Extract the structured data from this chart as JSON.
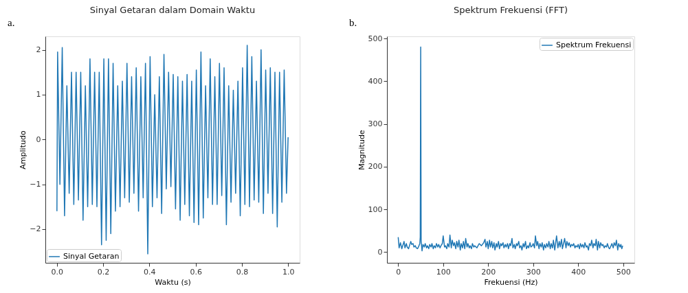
{
  "chart_data": [
    {
      "type": "line",
      "title": "Sinyal Getaran dalam Domain Waktu",
      "xlabel": "Waktu (s)",
      "ylabel": "Amplitudo",
      "annotations": [
        "a."
      ],
      "legend": "bottom left",
      "grid": false,
      "xlim": [
        -0.05,
        1.05
      ],
      "ylim": [
        -2.75,
        2.3
      ],
      "xticks": [
        {
          "value": 0,
          "label": "0.0"
        },
        0.2,
        0.4,
        0.6,
        0.8,
        {
          "value": 1,
          "label": "1.0"
        }
      ],
      "yticks": [
        {
          "value": -2,
          "label": "−2"
        },
        {
          "value": -1,
          "label": "−1"
        },
        0,
        1,
        2
      ],
      "series": [
        {
          "name": "Sinyal Getaran",
          "color": "#1f77b4",
          "x": [
            0,
            0.003,
            0.013,
            0.023,
            0.033,
            0.043,
            0.053,
            0.063,
            0.073,
            0.083,
            0.093,
            0.103,
            0.113,
            0.123,
            0.133,
            0.143,
            0.153,
            0.163,
            0.173,
            0.183,
            0.193,
            0.203,
            0.213,
            0.223,
            0.233,
            0.243,
            0.253,
            0.263,
            0.273,
            0.283,
            0.293,
            0.303,
            0.313,
            0.323,
            0.333,
            0.343,
            0.353,
            0.363,
            0.373,
            0.383,
            0.393,
            0.403,
            0.413,
            0.423,
            0.433,
            0.443,
            0.453,
            0.463,
            0.473,
            0.483,
            0.493,
            0.503,
            0.513,
            0.523,
            0.533,
            0.543,
            0.553,
            0.563,
            0.573,
            0.583,
            0.593,
            0.603,
            0.613,
            0.623,
            0.633,
            0.643,
            0.653,
            0.663,
            0.673,
            0.683,
            0.693,
            0.703,
            0.713,
            0.723,
            0.733,
            0.743,
            0.753,
            0.763,
            0.773,
            0.783,
            0.793,
            0.803,
            0.813,
            0.823,
            0.833,
            0.843,
            0.853,
            0.863,
            0.873,
            0.883,
            0.893,
            0.903,
            0.913,
            0.923,
            0.933,
            0.943,
            0.953,
            0.963,
            0.973,
            0.983,
            0.993,
            1.0
          ],
          "values": [
            -1.6,
            1.95,
            -1.0,
            2.05,
            -1.7,
            1.2,
            -1.2,
            1.5,
            -1.45,
            1.5,
            -1.35,
            1.5,
            -1.8,
            1.2,
            -1.5,
            1.8,
            -1.45,
            1.5,
            -1.5,
            1.5,
            -2.35,
            1.8,
            -2.25,
            1.8,
            -2.1,
            1.7,
            -1.6,
            1.2,
            -1.5,
            1.3,
            -1.3,
            1.7,
            -1.4,
            1.4,
            -1.2,
            1.6,
            -1.6,
            1.4,
            -1.3,
            1.7,
            -2.55,
            1.85,
            -1.5,
            1.0,
            -1.3,
            1.4,
            -1.65,
            1.9,
            -1.1,
            1.5,
            -1.05,
            1.45,
            -1.55,
            1.4,
            -1.8,
            1.3,
            -1.45,
            1.45,
            -1.7,
            1.3,
            -1.85,
            1.55,
            -1.9,
            1.95,
            -1.75,
            1.2,
            -1.3,
            1.8,
            -1.45,
            1.4,
            -1.45,
            1.7,
            -1.25,
            1.6,
            -1.9,
            1.2,
            -1.4,
            1.1,
            -1.2,
            1.3,
            -1.7,
            1.6,
            -1.45,
            2.1,
            -1.5,
            1.85,
            -1.35,
            1.3,
            -1.4,
            2.0,
            -1.65,
            1.55,
            -1.2,
            1.6,
            -1.65,
            1.5,
            -1.95,
            1.5,
            -1.4,
            1.55,
            -1.2,
            0.05
          ]
        }
      ]
    },
    {
      "type": "line",
      "title": "Spektrum Frekuensi (FFT)",
      "xlabel": "Frekuensi (Hz)",
      "ylabel": "Magnitude",
      "annotations": [
        "b."
      ],
      "legend": "top right",
      "grid": false,
      "xlim": [
        -25,
        525
      ],
      "ylim": [
        -25,
        505
      ],
      "xticks": [
        0,
        100,
        200,
        300,
        400,
        500
      ],
      "yticks": [
        0,
        100,
        200,
        300,
        400,
        500
      ],
      "series": [
        {
          "name": "Spektrum Frekuensi",
          "color": "#1f77b4",
          "x": [
            0,
            2,
            5,
            8,
            10,
            13,
            15,
            18,
            20,
            23,
            25,
            28,
            30,
            33,
            35,
            38,
            40,
            43,
            45,
            48,
            49,
            50,
            51,
            53,
            55,
            58,
            60,
            63,
            65,
            68,
            70,
            73,
            75,
            78,
            80,
            83,
            85,
            88,
            90,
            93,
            95,
            98,
            100,
            103,
            105,
            108,
            110,
            113,
            115,
            118,
            120,
            123,
            125,
            128,
            130,
            133,
            135,
            138,
            140,
            143,
            145,
            148,
            150,
            153,
            155,
            158,
            160,
            163,
            165,
            168,
            170,
            175,
            180,
            185,
            190,
            193,
            195,
            198,
            200,
            203,
            205,
            208,
            210,
            213,
            215,
            218,
            220,
            223,
            225,
            228,
            230,
            233,
            235,
            238,
            240,
            243,
            245,
            248,
            250,
            253,
            255,
            258,
            260,
            263,
            265,
            268,
            270,
            273,
            275,
            278,
            280,
            283,
            285,
            288,
            290,
            293,
            295,
            298,
            300,
            303,
            305,
            308,
            310,
            313,
            315,
            318,
            320,
            323,
            325,
            328,
            330,
            333,
            335,
            338,
            340,
            343,
            345,
            348,
            350,
            352,
            355,
            358,
            360,
            363,
            365,
            368,
            370,
            373,
            375,
            378,
            380,
            383,
            385,
            388,
            390,
            393,
            395,
            398,
            400,
            403,
            405,
            408,
            410,
            413,
            415,
            418,
            420,
            423,
            425,
            428,
            430,
            433,
            435,
            438,
            440,
            443,
            445,
            448,
            450,
            453,
            455,
            458,
            460,
            463,
            465,
            468,
            470,
            473,
            475,
            478,
            480,
            483,
            485,
            488,
            490,
            493,
            495,
            497,
            499
          ],
          "values": [
            35,
            10,
            22,
            8,
            15,
            25,
            10,
            20,
            12,
            8,
            15,
            25,
            18,
            20,
            12,
            15,
            10,
            8,
            12,
            20,
            35,
            480,
            25,
            3,
            18,
            12,
            20,
            10,
            15,
            8,
            18,
            12,
            20,
            8,
            15,
            10,
            20,
            12,
            18,
            10,
            15,
            20,
            38,
            12,
            15,
            8,
            20,
            12,
            40,
            10,
            28,
            15,
            22,
            8,
            25,
            12,
            28,
            5,
            20,
            10,
            25,
            8,
            32,
            12,
            20,
            10,
            15,
            8,
            20,
            12,
            15,
            10,
            20,
            15,
            22,
            30,
            12,
            25,
            8,
            28,
            12,
            25,
            10,
            22,
            5,
            20,
            12,
            25,
            8,
            20,
            15,
            22,
            10,
            18,
            12,
            20,
            8,
            20,
            15,
            32,
            10,
            18,
            8,
            20,
            15,
            25,
            10,
            15,
            5,
            20,
            12,
            25,
            8,
            15,
            10,
            22,
            12,
            15,
            20,
            10,
            38,
            15,
            25,
            8,
            20,
            12,
            22,
            5,
            18,
            10,
            20,
            12,
            25,
            8,
            20,
            10,
            28,
            5,
            22,
            38,
            10,
            25,
            12,
            30,
            8,
            22,
            32,
            10,
            25,
            15,
            22,
            12,
            18,
            15,
            20,
            10,
            15,
            12,
            18,
            8,
            20,
            12,
            18,
            10,
            22,
            12,
            15,
            5,
            20,
            15,
            28,
            10,
            20,
            15,
            30,
            5,
            25,
            10,
            22,
            15,
            18,
            10,
            15,
            12,
            20,
            10,
            8,
            15,
            20,
            10,
            22,
            15,
            28,
            5,
            20,
            12,
            18,
            8,
            15
          ]
        }
      ]
    }
  ]
}
